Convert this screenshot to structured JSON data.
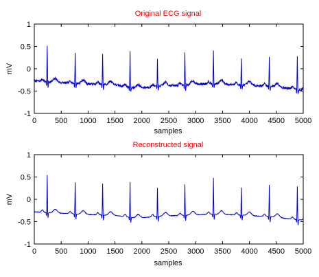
{
  "chart_data": [
    {
      "type": "line",
      "title": "Original ECG signal",
      "xlabel": "samples",
      "ylabel": "mV",
      "xlim": [
        0,
        5000
      ],
      "ylim": [
        -1,
        1
      ],
      "xticks": [
        0,
        500,
        1000,
        1500,
        2000,
        2500,
        3000,
        3500,
        4000,
        4500,
        5000
      ],
      "yticks": [
        -1,
        -0.5,
        0,
        0.5,
        1
      ],
      "grid": false,
      "line_color": "#0000cc",
      "title_color": "#ff0000",
      "peaks": [
        {
          "x": 240,
          "y": 0.52
        },
        {
          "x": 760,
          "y": 0.36
        },
        {
          "x": 1270,
          "y": 0.34
        },
        {
          "x": 1780,
          "y": 0.39
        },
        {
          "x": 2290,
          "y": 0.25
        },
        {
          "x": 2800,
          "y": 0.34
        },
        {
          "x": 3330,
          "y": 0.42
        },
        {
          "x": 3850,
          "y": 0.26
        },
        {
          "x": 4370,
          "y": 0.29
        },
        {
          "x": 4890,
          "y": 0.27
        }
      ],
      "baseline": [
        {
          "x": 0,
          "y": -0.27
        },
        {
          "x": 500,
          "y": -0.31
        },
        {
          "x": 1000,
          "y": -0.34
        },
        {
          "x": 1500,
          "y": -0.36
        },
        {
          "x": 1900,
          "y": -0.44
        },
        {
          "x": 2300,
          "y": -0.39
        },
        {
          "x": 2700,
          "y": -0.37
        },
        {
          "x": 3300,
          "y": -0.33
        },
        {
          "x": 3800,
          "y": -0.36
        },
        {
          "x": 4400,
          "y": -0.39
        },
        {
          "x": 5000,
          "y": -0.48
        }
      ]
    },
    {
      "type": "line",
      "title": "Reconstructed signal",
      "xlabel": "samples",
      "ylabel": "mV",
      "xlim": [
        0,
        5000
      ],
      "ylim": [
        -1,
        1
      ],
      "xticks": [
        0,
        500,
        1000,
        1500,
        2000,
        2500,
        3000,
        3500,
        4000,
        4500,
        5000
      ],
      "yticks": [
        -1,
        -0.5,
        0,
        0.5,
        1
      ],
      "grid": false,
      "line_color": "#0000cc",
      "title_color": "#ff0000",
      "peaks": [
        {
          "x": 240,
          "y": 0.54
        },
        {
          "x": 760,
          "y": 0.38
        },
        {
          "x": 1270,
          "y": 0.36
        },
        {
          "x": 1780,
          "y": 0.39
        },
        {
          "x": 2290,
          "y": 0.26
        },
        {
          "x": 2800,
          "y": 0.34
        },
        {
          "x": 3330,
          "y": 0.48
        },
        {
          "x": 3850,
          "y": 0.27
        },
        {
          "x": 4370,
          "y": 0.32
        },
        {
          "x": 4890,
          "y": 0.29
        }
      ],
      "baseline": [
        {
          "x": 0,
          "y": -0.28
        },
        {
          "x": 500,
          "y": -0.31
        },
        {
          "x": 1000,
          "y": -0.34
        },
        {
          "x": 1500,
          "y": -0.36
        },
        {
          "x": 1900,
          "y": -0.42
        },
        {
          "x": 2300,
          "y": -0.38
        },
        {
          "x": 2700,
          "y": -0.36
        },
        {
          "x": 3300,
          "y": -0.33
        },
        {
          "x": 3800,
          "y": -0.35
        },
        {
          "x": 4400,
          "y": -0.39
        },
        {
          "x": 5000,
          "y": -0.47
        }
      ]
    }
  ]
}
